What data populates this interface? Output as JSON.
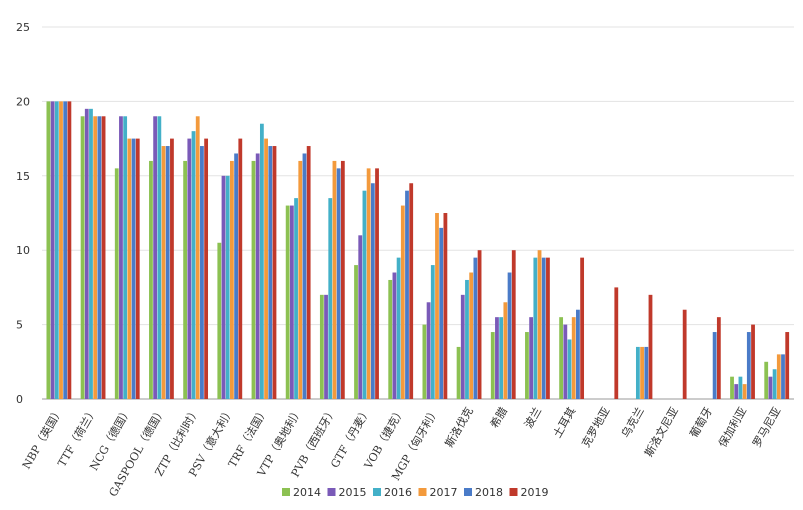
{
  "chart_data": {
    "type": "bar",
    "title": "",
    "xlabel": "",
    "ylabel": "",
    "ylim": [
      0,
      25
    ],
    "yticks": [
      0,
      5,
      10,
      15,
      20,
      25
    ],
    "grid": "horizontal",
    "legend_position": "bottom",
    "categories": [
      "NBP（英国）",
      "TTF（荷兰）",
      "NCG（德国）",
      "GASPOOL（德国）",
      "ZTP（比利时）",
      "PSV（意大利）",
      "TRF（法国）",
      "VTP（奥地利）",
      "PVB（西班牙）",
      "GTF（丹麦）",
      "VOB（捷克）",
      "MGP（匈牙利）",
      "斯洛伐克",
      "希腊",
      "波兰",
      "土耳其",
      "克罗地亚",
      "乌克兰",
      "斯洛文尼亚",
      "葡萄牙",
      "保加利亚",
      "罗马尼亚"
    ],
    "series": [
      {
        "name": "2014",
        "color": "#8cc152",
        "values": [
          20,
          19,
          15.5,
          16,
          16,
          10.5,
          16,
          13,
          7,
          9,
          8,
          5,
          3.5,
          4.5,
          4.5,
          5.5,
          null,
          null,
          null,
          null,
          1.5,
          2.5
        ]
      },
      {
        "name": "2015",
        "color": "#7a5ab8",
        "values": [
          20,
          19.5,
          19,
          19,
          17.5,
          15,
          16.5,
          13,
          7,
          11,
          8.5,
          6.5,
          7,
          5.5,
          5.5,
          5,
          null,
          null,
          null,
          null,
          1,
          1.5
        ]
      },
      {
        "name": "2016",
        "color": "#43b0c8",
        "values": [
          20,
          19.5,
          19,
          19,
          18,
          15,
          18.5,
          13.5,
          13.5,
          14,
          9.5,
          9,
          8,
          5.5,
          9.5,
          4,
          null,
          3.5,
          null,
          null,
          1.5,
          2
        ]
      },
      {
        "name": "2017",
        "color": "#f39a3c",
        "values": [
          20,
          19,
          17.5,
          17,
          19,
          16,
          17.5,
          16,
          16,
          15.5,
          13,
          12.5,
          8.5,
          6.5,
          10,
          5.5,
          null,
          3.5,
          null,
          null,
          1,
          3
        ]
      },
      {
        "name": "2018",
        "color": "#4a7bc8",
        "values": [
          20,
          19,
          17.5,
          17,
          17,
          16.5,
          17,
          16.5,
          15.5,
          14.5,
          14,
          11.5,
          9.5,
          8.5,
          9.5,
          6,
          null,
          3.5,
          null,
          4.5,
          4.5,
          3
        ]
      },
      {
        "name": "2019",
        "color": "#c0392b",
        "values": [
          20,
          19,
          17.5,
          17.5,
          17.5,
          17.5,
          17,
          17,
          16,
          15.5,
          14.5,
          12.5,
          10,
          10,
          9.5,
          9.5,
          7.5,
          7,
          6,
          5.5,
          5,
          4.5
        ]
      }
    ]
  }
}
